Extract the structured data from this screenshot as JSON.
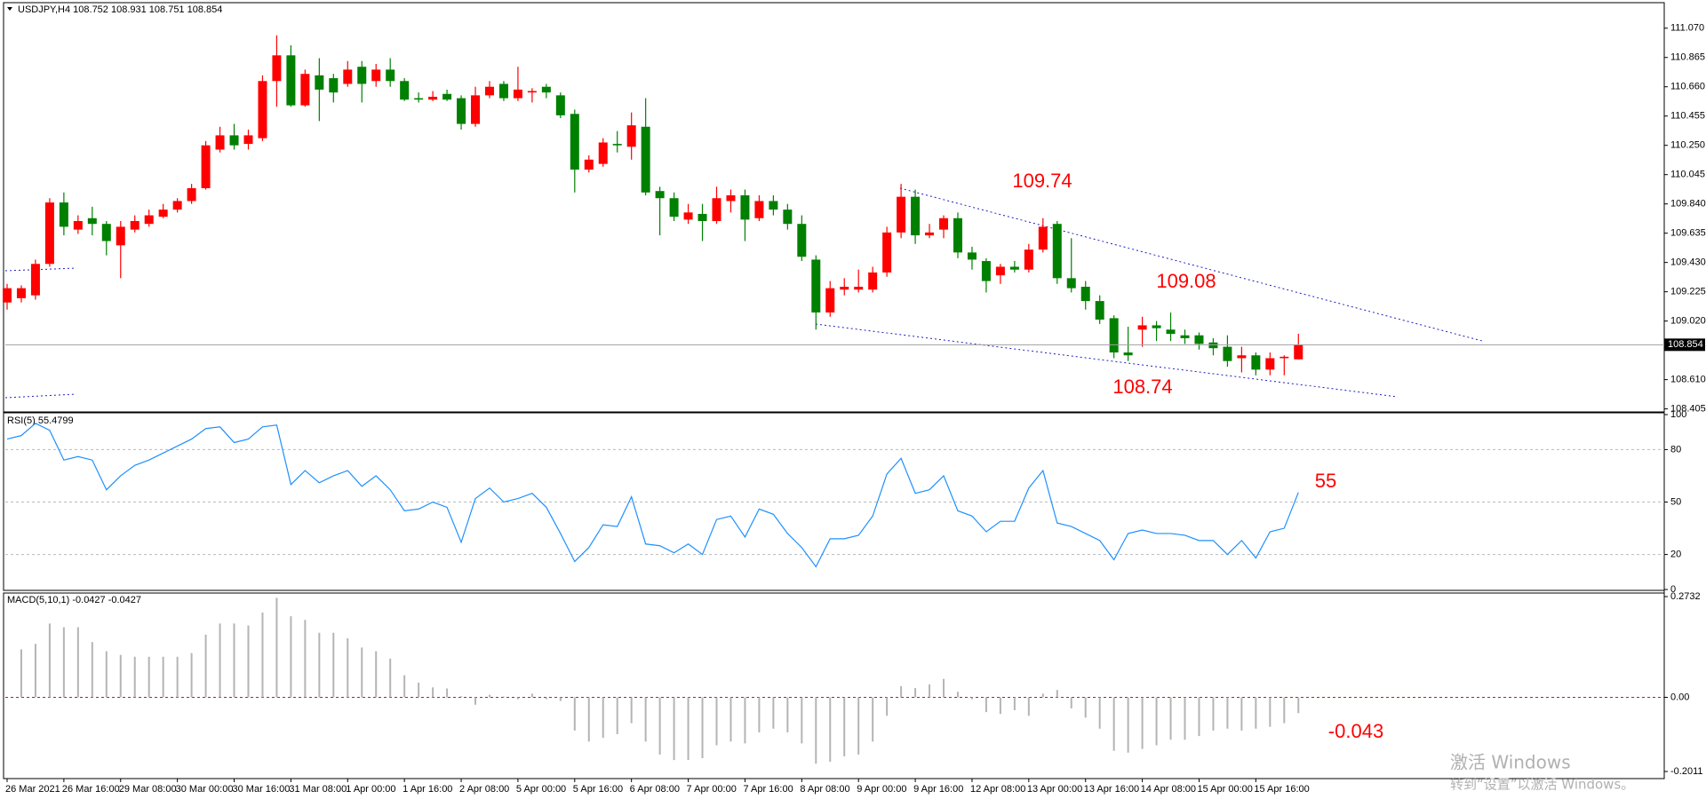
{
  "chart_data": [
    {
      "type": "candlestick",
      "title": "USDJPY,H4  108.752 108.931 108.751 108.854",
      "categories": [
        "26 Mar 2021",
        null,
        null,
        null,
        "26 Mar 16:00",
        null,
        null,
        null,
        "29 Mar 08:00",
        null,
        null,
        null,
        "30 Mar 00:00",
        null,
        null,
        null,
        "30 Mar 16:00",
        null,
        null,
        null,
        "31 Mar 08:00",
        null,
        null,
        null,
        "1 Apr 00:00",
        null,
        null,
        null,
        "1 Apr 16:00",
        null,
        null,
        null,
        "2 Apr 08:00",
        null,
        null,
        null,
        "5 Apr 00:00",
        null,
        null,
        null,
        "5 Apr 16:00",
        null,
        null,
        null,
        "6 Apr 08:00",
        null,
        null,
        null,
        "7 Apr 00:00",
        null,
        null,
        null,
        "7 Apr 16:00",
        null,
        null,
        null,
        "8 Apr 08:00",
        null,
        null,
        null,
        "9 Apr 00:00",
        null,
        null,
        null,
        "9 Apr 16:00",
        null,
        null,
        null,
        "12 Apr 08:00",
        null,
        null,
        null,
        "13 Apr 00:00",
        null,
        null,
        null,
        "13 Apr 16:00",
        null,
        null,
        null,
        "14 Apr 08:00",
        null,
        null,
        null,
        "15 Apr 00:00",
        null,
        null,
        null,
        "15 Apr 16:00",
        null,
        null,
        null
      ],
      "open": [
        109.15,
        109.18,
        109.2,
        109.42,
        109.85,
        109.66,
        109.74,
        109.7,
        109.55,
        109.66,
        109.7,
        109.75,
        109.8,
        109.86,
        109.95,
        110.22,
        110.32,
        110.26,
        110.3,
        110.7,
        110.88,
        110.53,
        110.74,
        110.72,
        110.68,
        110.8,
        110.7,
        110.78,
        110.7,
        110.58,
        110.57,
        110.61,
        110.58,
        110.4,
        110.6,
        110.68,
        110.58,
        110.62,
        110.66,
        110.6,
        110.47,
        110.08,
        110.12,
        110.26,
        110.24,
        110.38,
        109.93,
        109.88,
        109.73,
        109.77,
        109.72,
        109.86,
        109.9,
        109.74,
        109.86,
        109.8,
        109.7,
        109.45,
        109.08,
        109.24,
        109.24,
        109.24,
        109.36,
        109.64,
        109.89,
        109.62,
        109.66,
        109.74,
        109.5,
        109.44,
        109.34,
        109.4,
        109.38,
        109.52,
        109.7,
        109.32,
        109.26,
        109.16,
        109.04,
        108.8,
        108.96,
        108.99,
        108.96,
        108.92,
        108.92,
        108.87,
        108.84,
        108.76,
        108.78,
        108.68,
        108.76,
        108.752
      ],
      "high": [
        109.28,
        109.27,
        109.45,
        109.88,
        109.92,
        109.76,
        109.82,
        109.72,
        109.72,
        109.76,
        109.8,
        109.84,
        109.88,
        109.98,
        110.28,
        110.38,
        110.4,
        110.36,
        110.74,
        111.02,
        110.95,
        110.78,
        110.86,
        110.75,
        110.84,
        110.84,
        110.82,
        110.86,
        110.72,
        110.62,
        110.63,
        110.64,
        110.6,
        110.66,
        110.7,
        110.7,
        110.8,
        110.65,
        110.68,
        110.62,
        110.5,
        110.18,
        110.3,
        110.35,
        110.48,
        110.58,
        109.96,
        109.92,
        109.84,
        109.84,
        109.96,
        109.94,
        109.94,
        109.9,
        109.9,
        109.84,
        109.76,
        109.48,
        109.3,
        109.32,
        109.38,
        109.4,
        109.68,
        109.98,
        109.94,
        109.7,
        109.76,
        109.78,
        109.54,
        109.46,
        109.42,
        109.44,
        109.56,
        109.74,
        109.72,
        109.6,
        109.3,
        109.2,
        109.06,
        108.98,
        109.05,
        109.02,
        109.08,
        108.96,
        108.94,
        108.9,
        108.92,
        108.84,
        108.8,
        108.8,
        108.78,
        108.931
      ],
      "low": [
        109.1,
        109.15,
        109.17,
        109.4,
        109.62,
        109.63,
        109.62,
        109.48,
        109.32,
        109.64,
        109.68,
        109.74,
        109.78,
        109.84,
        109.94,
        110.2,
        110.22,
        110.22,
        110.28,
        110.52,
        110.52,
        110.52,
        110.42,
        110.55,
        110.66,
        110.55,
        110.66,
        110.66,
        110.56,
        110.55,
        110.56,
        110.56,
        110.36,
        110.38,
        110.58,
        110.56,
        110.56,
        110.55,
        110.58,
        110.44,
        109.92,
        110.06,
        110.1,
        110.2,
        110.15,
        109.9,
        109.62,
        109.72,
        109.7,
        109.58,
        109.7,
        109.78,
        109.58,
        109.72,
        109.76,
        109.66,
        109.44,
        108.96,
        109.05,
        109.2,
        109.22,
        109.22,
        109.33,
        109.6,
        109.56,
        109.6,
        109.6,
        109.46,
        109.38,
        109.22,
        109.28,
        109.36,
        109.36,
        109.5,
        109.28,
        109.22,
        109.1,
        109.0,
        108.76,
        108.74,
        108.84,
        108.88,
        108.88,
        108.86,
        108.82,
        108.78,
        108.7,
        108.66,
        108.64,
        108.64,
        108.64,
        108.751
      ],
      "close": [
        109.25,
        109.25,
        109.42,
        109.85,
        109.68,
        109.72,
        109.7,
        109.58,
        109.68,
        109.72,
        109.76,
        109.8,
        109.86,
        109.95,
        110.25,
        110.32,
        110.25,
        110.32,
        110.7,
        110.88,
        110.53,
        110.75,
        110.64,
        110.62,
        110.78,
        110.68,
        110.78,
        110.7,
        110.57,
        110.57,
        110.59,
        110.57,
        110.4,
        110.6,
        110.66,
        110.58,
        110.64,
        110.63,
        110.62,
        110.46,
        110.08,
        110.15,
        110.27,
        110.25,
        110.39,
        109.92,
        109.88,
        109.75,
        109.78,
        109.72,
        109.88,
        109.9,
        109.73,
        109.86,
        109.8,
        109.7,
        109.47,
        109.08,
        109.25,
        109.26,
        109.26,
        109.36,
        109.64,
        109.89,
        109.62,
        109.64,
        109.74,
        109.5,
        109.45,
        109.3,
        109.4,
        109.38,
        109.52,
        109.68,
        109.32,
        109.25,
        109.16,
        109.03,
        108.8,
        108.78,
        108.99,
        108.97,
        108.93,
        108.9,
        108.86,
        108.83,
        108.74,
        108.78,
        108.68,
        108.76,
        108.77,
        108.854
      ],
      "up_color": "#ff0000",
      "down_color": "#008000",
      "ylim": [
        108.39,
        111.23
      ],
      "yticks": [
        {
          "value": 111.07,
          "label": "111.070"
        },
        110.865,
        {
          "value": 110.66,
          "label": "110.660"
        },
        110.455,
        {
          "value": 110.25,
          "label": "110.250"
        },
        110.045,
        {
          "value": 109.84,
          "label": "109.840"
        },
        109.635,
        {
          "value": 109.43,
          "label": "109.430"
        },
        109.225,
        {
          "value": 109.02,
          "label": "109.020"
        },
        {
          "value": 108.61,
          "label": "108.610"
        },
        108.405
      ],
      "grid": false,
      "annotations": [
        "109.74",
        "109.08",
        "108.74"
      ]
    },
    {
      "type": "line",
      "title": "RSI(5) 55.4799",
      "values": [
        86,
        88,
        95,
        91,
        74,
        76,
        74,
        57,
        65,
        71,
        74,
        78,
        82,
        86,
        92,
        93,
        84,
        86,
        93,
        94,
        60,
        68,
        61,
        65,
        68,
        59,
        65,
        57,
        45,
        46,
        50,
        47,
        27,
        52,
        58,
        50,
        52,
        55,
        47,
        32,
        16,
        24,
        37,
        36,
        53,
        26,
        25,
        21,
        26,
        20,
        40,
        42,
        30,
        46,
        43,
        32,
        24,
        13,
        29,
        29,
        31,
        42,
        66,
        75,
        55,
        57,
        65,
        45,
        42,
        33,
        39,
        39,
        58,
        68,
        38,
        36,
        32,
        28,
        17,
        32,
        34,
        32,
        32,
        31,
        28,
        28,
        20,
        28,
        18,
        33,
        35,
        55.48
      ],
      "color": "#1e90ff",
      "ylim": [
        0,
        100
      ],
      "yticks": [
        100,
        80,
        50,
        20,
        0
      ],
      "grid": true,
      "grid_color": "#bbbbbb",
      "annotations": [
        "55"
      ]
    },
    {
      "type": "bar",
      "title": "MACD(5,10,1) -0.0427 -0.0427",
      "values": [
        null,
        0.13,
        0.145,
        0.2,
        0.19,
        0.19,
        0.15,
        0.125,
        0.115,
        0.11,
        0.11,
        0.11,
        0.11,
        0.12,
        0.17,
        0.2,
        0.2,
        0.195,
        0.23,
        0.27,
        0.22,
        0.21,
        0.175,
        0.175,
        0.16,
        0.135,
        0.125,
        0.105,
        0.06,
        0.04,
        0.027,
        0.024,
        0.003,
        -0.02,
        0.007,
        0.002,
        -0.005,
        0.01,
        -0.005,
        -0.01,
        -0.09,
        -0.12,
        -0.11,
        -0.1,
        -0.07,
        -0.12,
        -0.155,
        -0.17,
        -0.17,
        -0.165,
        -0.13,
        -0.12,
        -0.125,
        -0.095,
        -0.085,
        -0.095,
        -0.125,
        -0.18,
        -0.175,
        -0.16,
        -0.155,
        -0.12,
        -0.05,
        0.03,
        0.025,
        0.035,
        0.05,
        0.015,
        -0.005,
        -0.04,
        -0.045,
        -0.035,
        -0.05,
        0.01,
        0.02,
        -0.03,
        -0.055,
        -0.085,
        -0.145,
        -0.15,
        -0.14,
        -0.13,
        -0.115,
        -0.115,
        -0.105,
        -0.09,
        -0.085,
        -0.09,
        -0.085,
        -0.08,
        -0.07,
        -0.0427
      ],
      "color": "#b4b4b4",
      "ylim": [
        -0.2011,
        0.2732
      ],
      "yticks": [
        0.2732,
        {
          "value": 0,
          "label": "0.00"
        },
        -0.2011
      ],
      "grid": true,
      "grid_color": "#ff0000",
      "annotations": [
        "-0.043"
      ]
    }
  ],
  "watermark": {
    "title": "激活 Windows",
    "subtitle": "转到“设置”以激活 Windows。"
  }
}
